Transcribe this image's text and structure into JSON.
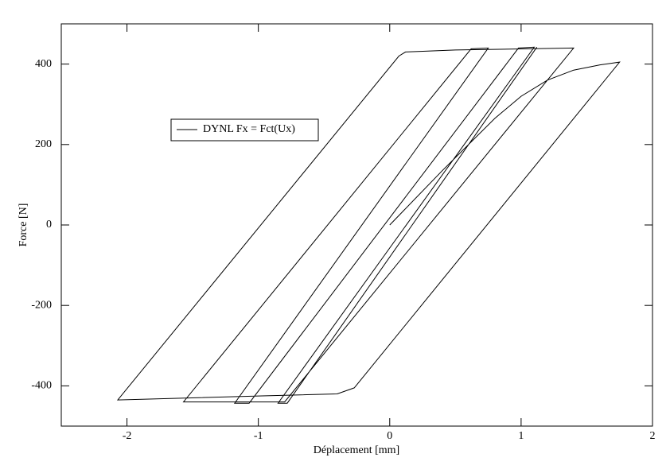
{
  "chart_data": {
    "type": "line",
    "xlabel": "Déplacement [mm]",
    "ylabel": "Force [N]",
    "xlim": [
      -2.5,
      2
    ],
    "ylim": [
      -500,
      500
    ],
    "xticks": [
      -2,
      -1,
      0,
      1,
      2
    ],
    "yticks": [
      -400,
      -200,
      0,
      200,
      400
    ],
    "grid": false,
    "legend": "upper left",
    "x": [
      0,
      0.4,
      0.8,
      1.0,
      1.2,
      1.4,
      1.6,
      1.75,
      -0.27,
      -0.4,
      -1.0,
      -2.07,
      0.07,
      0.12,
      0.5,
      1.4,
      -0.8,
      -1.45,
      -1.57,
      0.62,
      0.75,
      -1.18,
      -1.07,
      0.98,
      1.1,
      -0.85,
      -0.78,
      1.12
    ],
    "series": [
      {
        "name": "DYNL Fx = Fct(Ux)",
        "color": "#000000",
        "values": [
          0,
          135,
          265,
          320,
          360,
          385,
          398,
          405,
          -405,
          -420,
          -425,
          -435,
          420,
          430,
          435,
          440,
          -440,
          -440,
          -440,
          438,
          440,
          -443,
          -443,
          440,
          442,
          -443,
          -443,
          442
        ]
      }
    ]
  }
}
